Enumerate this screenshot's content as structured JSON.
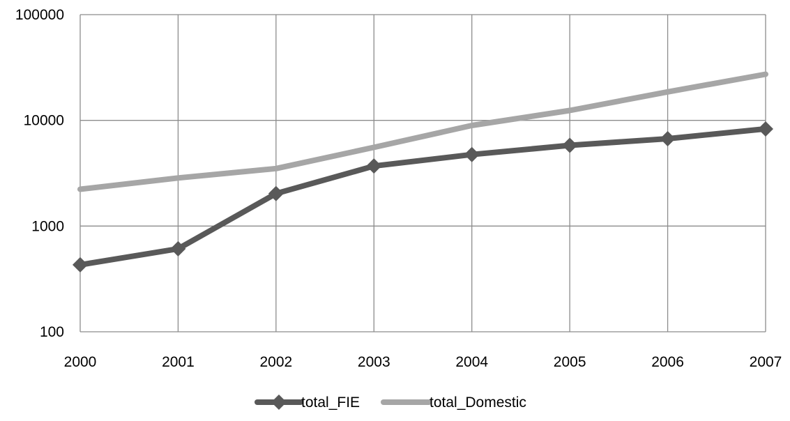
{
  "chart_data": {
    "type": "line",
    "title": "",
    "xlabel": "",
    "ylabel": "",
    "x": [
      "2000",
      "2001",
      "2002",
      "2003",
      "2004",
      "2005",
      "2006",
      "2007"
    ],
    "y_scale": "log",
    "ylim": [
      100,
      100000
    ],
    "y_ticks": [
      "100",
      "1000",
      "10000",
      "100000"
    ],
    "grid": true,
    "legend_position": "bottom",
    "series": [
      {
        "name": "total_FIE",
        "values": [
          430,
          610,
          2030,
          3700,
          4750,
          5800,
          6700,
          8300
        ],
        "color": "#595959",
        "marker": "diamond"
      },
      {
        "name": "total_Domestic",
        "values": [
          2230,
          2850,
          3500,
          5550,
          8950,
          12400,
          18600,
          27300
        ],
        "color": "#a6a6a6",
        "marker": "none"
      }
    ]
  }
}
